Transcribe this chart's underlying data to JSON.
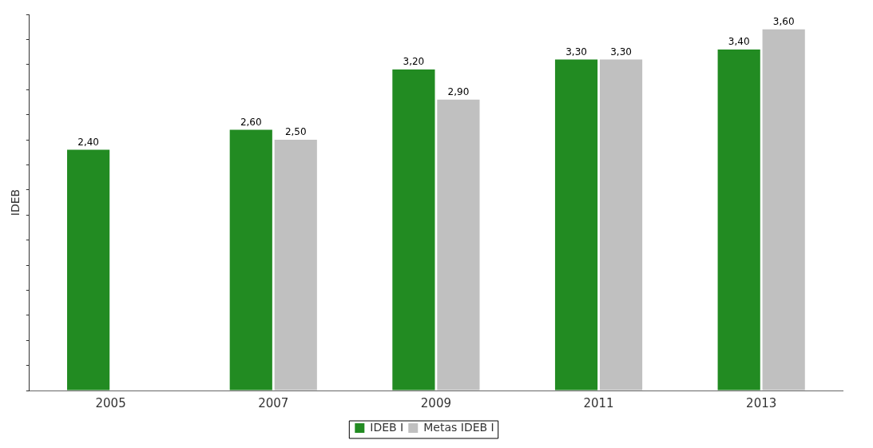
{
  "chart_data": {
    "type": "bar",
    "ylabel": "IDEB",
    "categories": [
      "2005",
      "2007",
      "2009",
      "2011",
      "2013"
    ],
    "series": [
      {
        "name": "IDEB I",
        "color": "#228b22",
        "values": [
          2.4,
          2.6,
          3.2,
          3.3,
          3.4
        ],
        "value_labels": [
          "2,40",
          "2,60",
          "3,20",
          "3,30",
          "3,40"
        ]
      },
      {
        "name": "Metas IDEB I",
        "color": "#c0c0c0",
        "values": [
          null,
          2.5,
          2.9,
          3.3,
          3.6
        ],
        "value_labels": [
          null,
          "2,50",
          "2,90",
          "3,30",
          "3,60"
        ]
      }
    ],
    "ylim": [
      0,
      3.75
    ],
    "yticks": [
      {
        "value": 0,
        "label": null
      },
      {
        "value": 0.25,
        "label": null
      },
      {
        "value": 0.5,
        "label": null
      },
      {
        "value": 0.75,
        "label": null
      },
      {
        "value": 1,
        "label": null
      },
      {
        "value": 1.25,
        "label": null
      },
      {
        "value": 1.5,
        "label": null
      },
      {
        "value": 1.75,
        "label": null
      },
      {
        "value": 2,
        "label": null
      },
      {
        "value": 2.25,
        "label": null
      },
      {
        "value": 2.5,
        "label": null
      },
      {
        "value": 2.75,
        "label": null
      },
      {
        "value": 3,
        "label": null
      },
      {
        "value": 3.25,
        "label": null
      },
      {
        "value": 3.5,
        "label": null
      },
      {
        "value": 3.75,
        "label": null
      }
    ],
    "tick_labels": "x",
    "legend": "bottom"
  }
}
